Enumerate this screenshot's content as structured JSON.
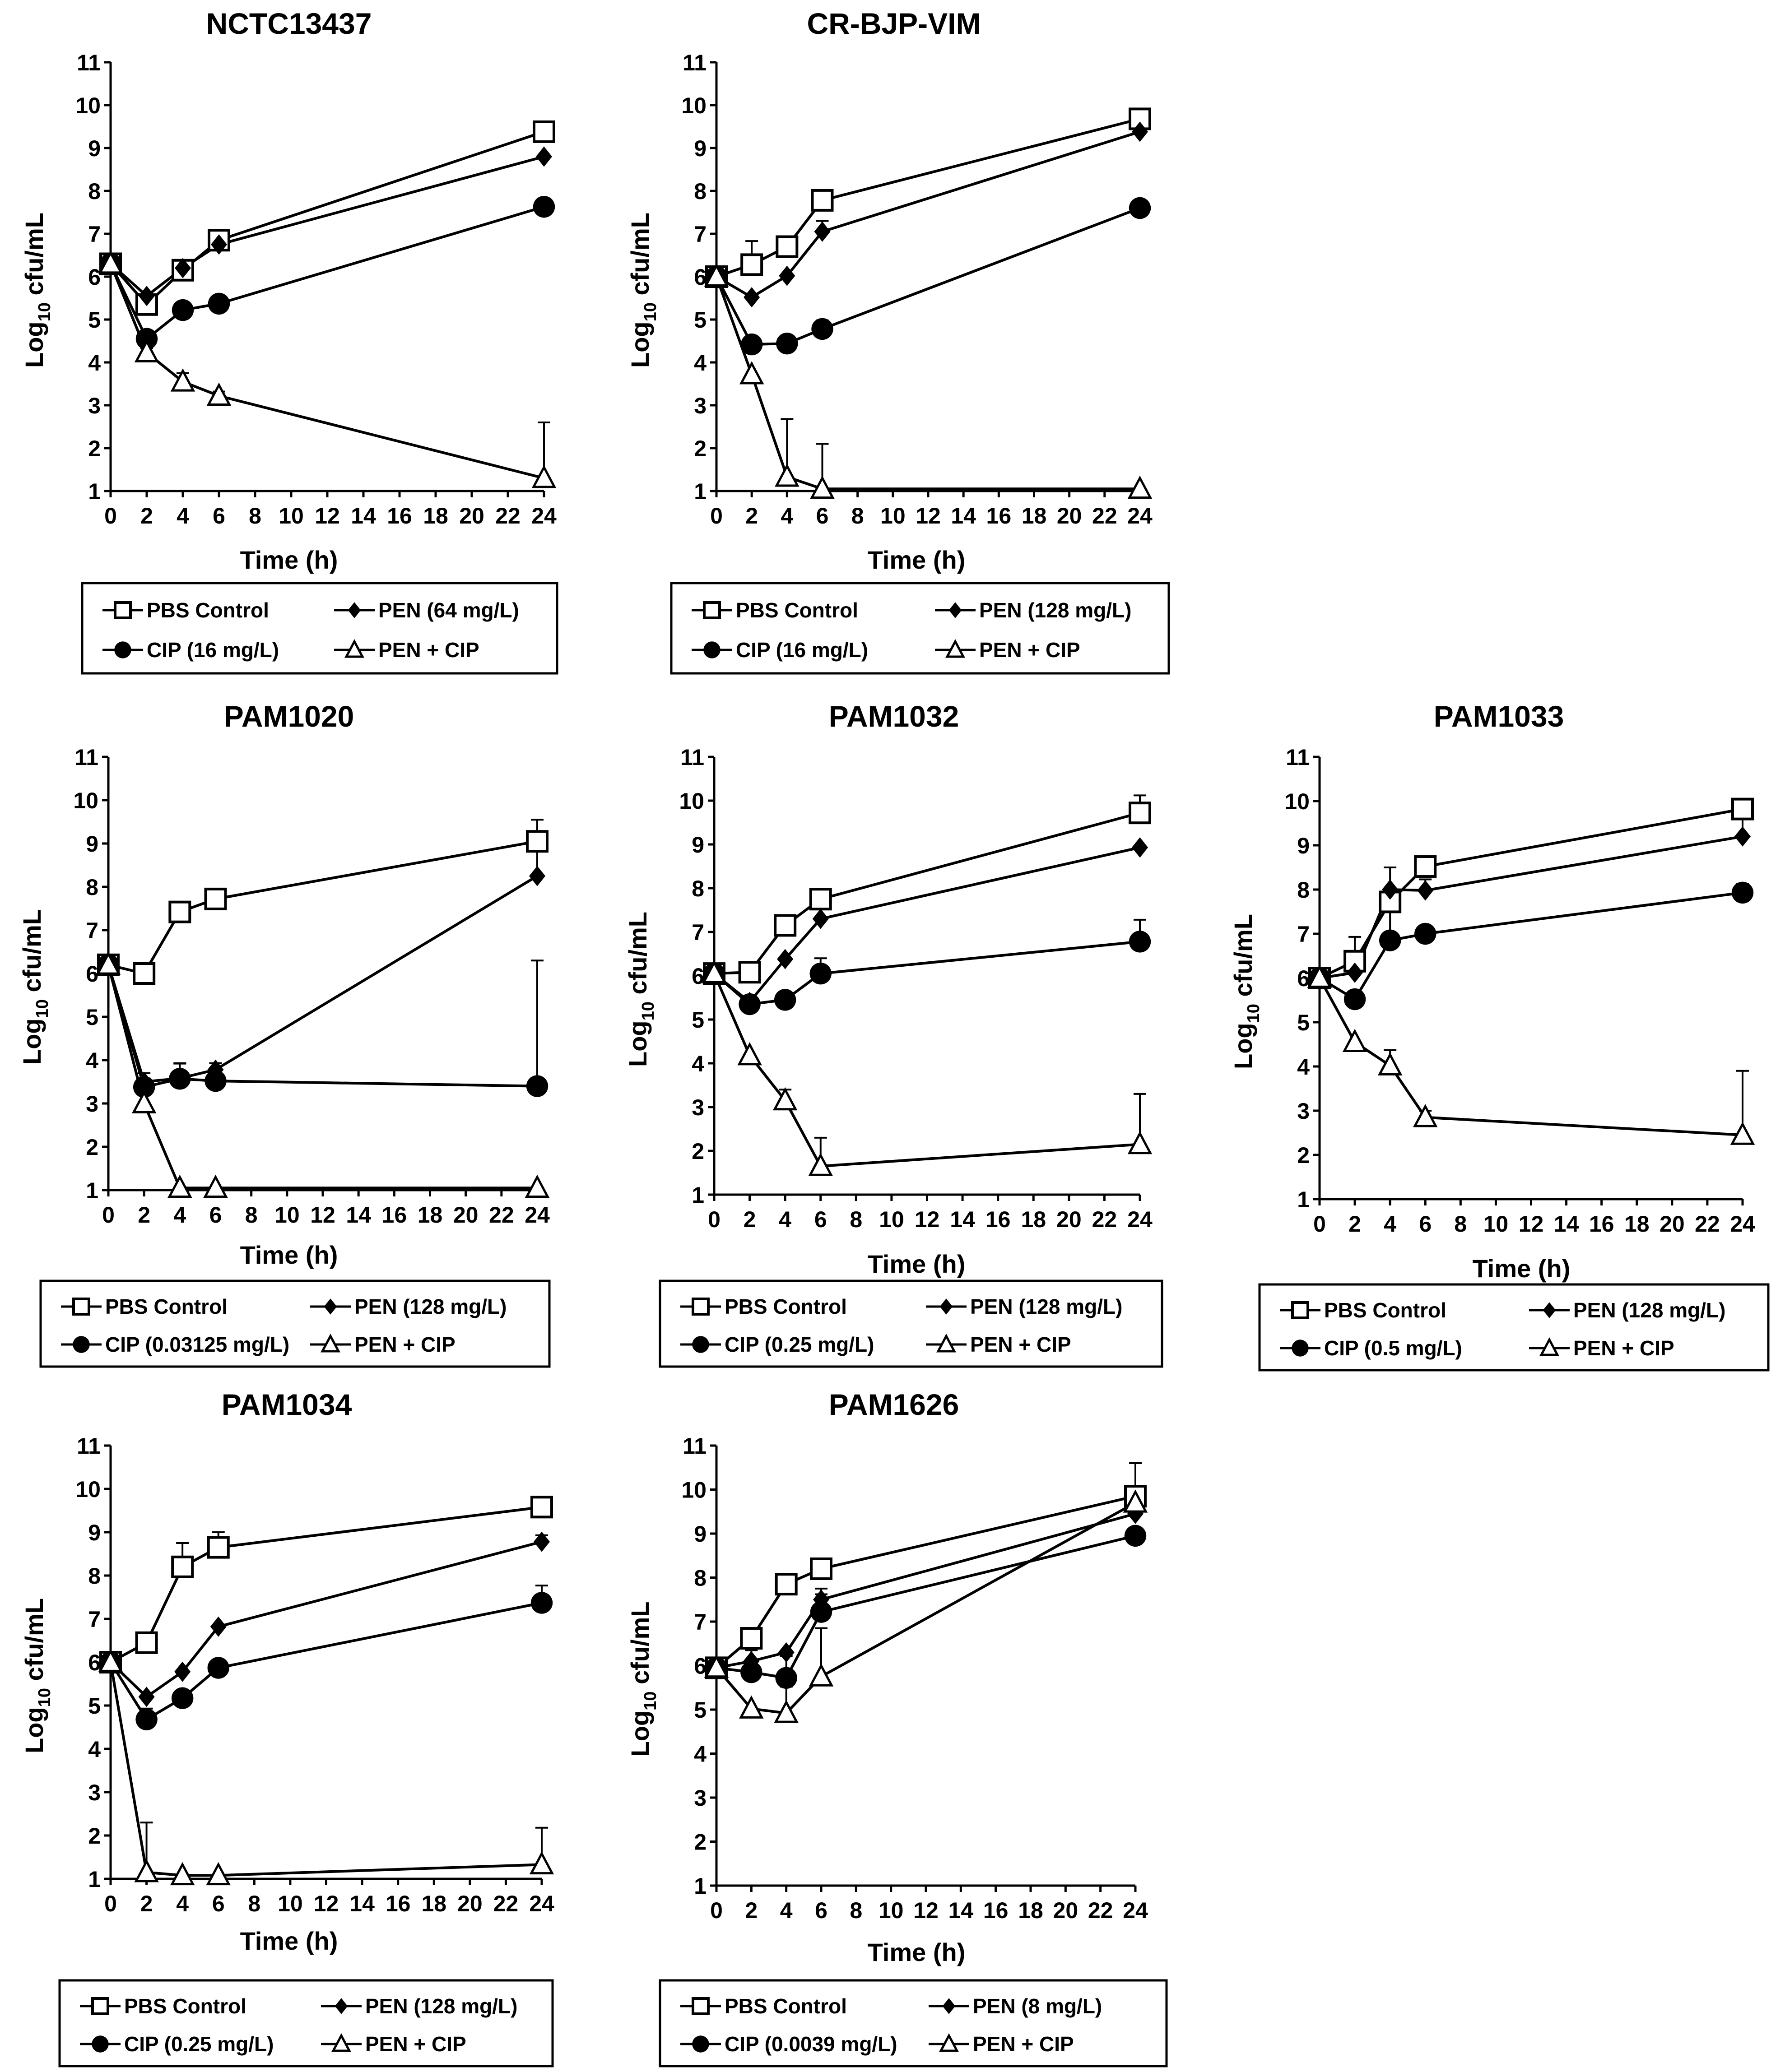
{
  "figure": {
    "x_ticks": [
      "0",
      "2",
      "4",
      "6",
      "8",
      "10",
      "12",
      "14",
      "16",
      "18",
      "20",
      "22",
      "24"
    ],
    "y_ticks": [
      "1",
      "2",
      "3",
      "4",
      "5",
      "6",
      "7",
      "8",
      "9",
      "10",
      "11"
    ]
  },
  "chart_data": [
    {
      "type": "line",
      "title": "NCTC13437",
      "xlabel": "Time (h)",
      "ylabel": "Log10 cfu/mL",
      "ylabel_main": "Log",
      "ylabel_sub": "10",
      "ylabel_rest": " cfu/mL",
      "xlim": [
        0,
        24
      ],
      "ylim": [
        1,
        11
      ],
      "x": [
        0,
        2,
        4,
        6,
        24
      ],
      "series": [
        {
          "name": "PBS Control",
          "legend_label": "PBS Control",
          "marker": "square-open",
          "values": [
            6.3,
            5.35,
            6.15,
            6.85,
            9.38
          ],
          "errors": [
            0,
            0.1,
            0.1,
            0.1,
            0
          ]
        },
        {
          "name": "PEN",
          "legend_label": "PEN (64 mg/L)",
          "marker": "diamond-filled",
          "values": [
            6.3,
            5.55,
            6.2,
            6.75,
            8.8
          ],
          "errors": [
            0,
            0,
            0,
            0,
            0
          ]
        },
        {
          "name": "CIP",
          "legend_label": "CIP (16 mg/L)",
          "marker": "circle-filled",
          "values": [
            6.3,
            4.55,
            5.22,
            5.37,
            7.63
          ],
          "errors": [
            0,
            0,
            0,
            0,
            0
          ]
        },
        {
          "name": "PEN + CIP",
          "legend_label": "PEN + CIP",
          "marker": "triangle-open",
          "values": [
            6.3,
            4.23,
            3.55,
            3.22,
            1.3
          ],
          "errors": [
            0,
            0.1,
            0.2,
            0.1,
            1.3
          ]
        }
      ]
    },
    {
      "type": "line",
      "title": "CR-BJP-VIM",
      "xlabel": "Time (h)",
      "ylabel": "Log10 cfu/mL",
      "ylabel_main": "Log",
      "ylabel_sub": "10",
      "ylabel_rest": " cfu/mL",
      "xlim": [
        0,
        24
      ],
      "ylim": [
        1,
        11
      ],
      "x": [
        0,
        2,
        4,
        6,
        24
      ],
      "series": [
        {
          "name": "PBS Control",
          "legend_label": "PBS Control",
          "marker": "square-open",
          "values": [
            6.0,
            6.28,
            6.7,
            7.78,
            9.68
          ],
          "errors": [
            0,
            0.55,
            0,
            0,
            0
          ]
        },
        {
          "name": "PEN",
          "legend_label": "PEN (128 mg/L)",
          "marker": "diamond-filled",
          "values": [
            6.0,
            5.52,
            6.02,
            7.05,
            9.38
          ],
          "errors": [
            0,
            0,
            0,
            0.25,
            0.1
          ]
        },
        {
          "name": "CIP",
          "legend_label": "CIP (16 mg/L)",
          "marker": "circle-filled",
          "values": [
            6.0,
            4.42,
            4.44,
            4.78,
            7.6
          ],
          "errors": [
            0,
            0,
            0,
            0.2,
            0
          ]
        },
        {
          "name": "PEN + CIP",
          "legend_label": "PEN + CIP",
          "marker": "triangle-open",
          "values": [
            6.0,
            3.72,
            1.33,
            1.05,
            1.05
          ],
          "errors": [
            0,
            0,
            1.35,
            1.05,
            0
          ]
        }
      ]
    },
    {
      "type": "line",
      "title": "PAM1020",
      "xlabel": "Time (h)",
      "ylabel": "Log10 cfu/mL",
      "ylabel_main": "Log",
      "ylabel_sub": "10",
      "ylabel_rest": " cfu/mL",
      "xlim": [
        0,
        24
      ],
      "ylim": [
        1,
        11
      ],
      "x": [
        0,
        2,
        4,
        6,
        24
      ],
      "series": [
        {
          "name": "PBS Control",
          "legend_label": "PBS Control",
          "marker": "square-open",
          "values": [
            6.2,
            6.0,
            7.42,
            7.72,
            9.05
          ],
          "errors": [
            0,
            0,
            0,
            0,
            0.5
          ]
        },
        {
          "name": "PEN",
          "legend_label": "PEN (128 mg/L)",
          "marker": "diamond-filled",
          "values": [
            6.2,
            3.5,
            3.58,
            3.78,
            8.25
          ],
          "errors": [
            0,
            0.2,
            0.35,
            0.15,
            0.8
          ]
        },
        {
          "name": "CIP",
          "legend_label": "CIP (0.03125 mg/L)",
          "marker": "circle-filled",
          "values": [
            6.2,
            3.38,
            3.57,
            3.52,
            3.4
          ],
          "errors": [
            0,
            0.2,
            0.35,
            0.2,
            2.9
          ]
        },
        {
          "name": "PEN + CIP",
          "legend_label": "PEN + CIP",
          "marker": "triangle-open",
          "values": [
            6.2,
            3.0,
            1.05,
            1.05,
            1.05
          ],
          "errors": [
            0,
            0,
            0,
            0,
            0
          ]
        }
      ]
    },
    {
      "type": "line",
      "title": "PAM1032",
      "xlabel": "Time (h)",
      "ylabel": "Log10 cfu/mL",
      "ylabel_main": "Log",
      "ylabel_sub": "10",
      "ylabel_rest": " cfu/mL",
      "xlim": [
        0,
        24
      ],
      "ylim": [
        1,
        11
      ],
      "x": [
        0,
        2,
        4,
        6,
        24
      ],
      "series": [
        {
          "name": "PBS Control",
          "legend_label": "PBS Control",
          "marker": "square-open",
          "values": [
            6.05,
            6.08,
            7.15,
            7.75,
            9.72
          ],
          "errors": [
            0,
            0,
            0,
            0,
            0.4
          ]
        },
        {
          "name": "PEN",
          "legend_label": "PEN (128 mg/L)",
          "marker": "diamond-filled",
          "values": [
            6.05,
            5.4,
            6.38,
            7.3,
            8.93
          ],
          "errors": [
            0,
            0,
            0,
            0,
            0
          ]
        },
        {
          "name": "CIP",
          "legend_label": "CIP (0.25 mg/L)",
          "marker": "circle-filled",
          "values": [
            6.05,
            5.35,
            5.45,
            6.05,
            6.78
          ],
          "errors": [
            0,
            0.1,
            0.1,
            0.35,
            0.5
          ]
        },
        {
          "name": "PEN + CIP",
          "legend_label": "PEN + CIP",
          "marker": "triangle-open",
          "values": [
            6.05,
            4.18,
            3.15,
            1.65,
            2.15
          ],
          "errors": [
            0,
            0,
            0.25,
            0.65,
            1.15
          ]
        }
      ]
    },
    {
      "type": "line",
      "title": "PAM1033",
      "xlabel": "Time (h)",
      "ylabel": "Log10 cfu/mL",
      "ylabel_main": "Log",
      "ylabel_sub": "10",
      "ylabel_rest": " cfu/mL",
      "xlim": [
        0,
        24
      ],
      "ylim": [
        1,
        11
      ],
      "x": [
        0,
        2,
        4,
        6,
        24
      ],
      "series": [
        {
          "name": "PBS Control",
          "legend_label": "PBS Control",
          "marker": "square-open",
          "values": [
            6.0,
            6.38,
            7.72,
            8.52,
            9.82
          ],
          "errors": [
            0,
            0.55,
            0,
            0,
            0.1
          ]
        },
        {
          "name": "PEN",
          "legend_label": "PEN (128 mg/L)",
          "marker": "diamond-filled",
          "values": [
            6.0,
            6.12,
            8.0,
            7.98,
            9.2
          ],
          "errors": [
            0,
            0.2,
            0.5,
            0.25,
            0.7
          ]
        },
        {
          "name": "CIP",
          "legend_label": "CIP (0.5 mg/L)",
          "marker": "circle-filled",
          "values": [
            6.0,
            5.52,
            6.85,
            7.0,
            7.93
          ],
          "errors": [
            0,
            0,
            0.85,
            0,
            0.2
          ]
        },
        {
          "name": "PEN + CIP",
          "legend_label": "PEN + CIP",
          "marker": "triangle-open",
          "values": [
            6.0,
            4.55,
            4.02,
            2.85,
            2.45
          ],
          "errors": [
            0,
            0,
            0.35,
            0.15,
            1.45
          ]
        }
      ]
    },
    {
      "type": "line",
      "title": "PAM1034",
      "xlabel": "Time (h)",
      "ylabel": "Log10 cfu/mL",
      "ylabel_main": "Log",
      "ylabel_sub": "10",
      "ylabel_rest": " cfu/mL",
      "xlim": [
        0,
        24
      ],
      "ylim": [
        1,
        11
      ],
      "x": [
        0,
        2,
        4,
        6,
        24
      ],
      "series": [
        {
          "name": "PBS Control",
          "legend_label": "PBS Control",
          "marker": "square-open",
          "values": [
            6.0,
            6.45,
            8.2,
            8.65,
            9.58
          ],
          "errors": [
            0,
            0,
            0.55,
            0.35,
            0.1
          ]
        },
        {
          "name": "PEN",
          "legend_label": "PEN (128 mg/L)",
          "marker": "diamond-filled",
          "values": [
            6.0,
            5.2,
            5.78,
            6.82,
            8.78
          ],
          "errors": [
            0,
            0,
            0,
            0,
            0.15
          ]
        },
        {
          "name": "CIP",
          "legend_label": "CIP (0.25 mg/L)",
          "marker": "circle-filled",
          "values": [
            6.0,
            4.68,
            5.17,
            5.87,
            7.37
          ],
          "errors": [
            0,
            0.25,
            0,
            0,
            0.4
          ]
        },
        {
          "name": "PEN + CIP",
          "legend_label": "PEN + CIP",
          "marker": "triangle-open",
          "values": [
            6.0,
            1.15,
            1.08,
            1.08,
            1.33
          ],
          "errors": [
            0,
            1.15,
            0,
            0,
            0.85
          ]
        }
      ]
    },
    {
      "type": "line",
      "title": "PAM1626",
      "xlabel": "Time (h)",
      "ylabel": "Log10 cfu/mL",
      "ylabel_main": "Log",
      "ylabel_sub": "10",
      "ylabel_rest": " cfu/mL",
      "xlim": [
        0,
        24
      ],
      "ylim": [
        1,
        11
      ],
      "x": [
        0,
        2,
        4,
        6,
        24
      ],
      "series": [
        {
          "name": "PBS Control",
          "legend_label": "PBS Control",
          "marker": "square-open",
          "values": [
            5.95,
            6.62,
            7.85,
            8.2,
            9.85
          ],
          "errors": [
            0,
            0.15,
            0,
            0,
            0.75
          ]
        },
        {
          "name": "PEN",
          "legend_label": "PEN (8 mg/L)",
          "marker": "diamond-filled",
          "values": [
            5.95,
            6.1,
            6.3,
            7.5,
            9.45
          ],
          "errors": [
            0,
            0,
            0,
            0.25,
            0.35
          ]
        },
        {
          "name": "CIP",
          "legend_label": "CIP (0.0039 mg/L)",
          "marker": "circle-filled",
          "values": [
            5.95,
            5.85,
            5.72,
            7.22,
            8.95
          ],
          "errors": [
            0,
            0.5,
            0.5,
            0.4,
            0
          ]
        },
        {
          "name": "PEN + CIP",
          "legend_label": "PEN + CIP",
          "marker": "triangle-open",
          "values": [
            5.95,
            5.02,
            4.92,
            5.75,
            9.7
          ],
          "errors": [
            0,
            0,
            0.6,
            1.1,
            0
          ]
        }
      ]
    }
  ]
}
